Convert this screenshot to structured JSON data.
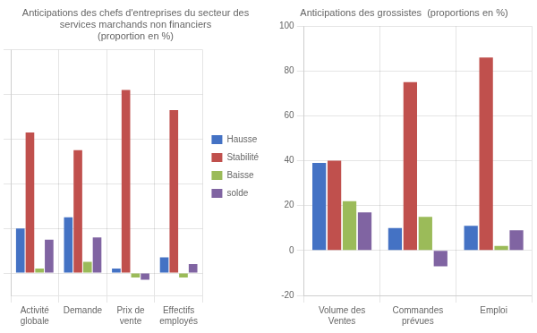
{
  "chart_data": [
    {
      "type": "bar",
      "title": "Anticipations des chefs d'entreprises du secteur des\nservices marchands non financiers\n(proportion en %)",
      "categories": [
        "Activité\nglobale",
        "Demande",
        "Prix de\nvente",
        "Effectifs\nemployés"
      ],
      "series": [
        {
          "name": "Hausse",
          "color": "#4472C4",
          "values": [
            20,
            25,
            2,
            7
          ]
        },
        {
          "name": "Stabilité",
          "color": "#C0504D",
          "values": [
            63,
            55,
            82,
            73
          ]
        },
        {
          "name": "Baisse",
          "color": "#9BBB59",
          "values": [
            2,
            5,
            -2,
            -2
          ]
        },
        {
          "name": "solde",
          "color": "#8064A2",
          "values": [
            15,
            16,
            -3,
            4
          ]
        }
      ],
      "ylim": [
        -10,
        100
      ],
      "yticks": [
        0,
        20,
        40,
        60,
        80,
        100
      ],
      "grid": true,
      "tick_labels": "x",
      "legend": "right"
    },
    {
      "type": "bar",
      "title": "Anticipations des grossistes  (proportions en %)",
      "categories": [
        "Volume des\nVentes",
        "Commandes\nprévues",
        "Emploi"
      ],
      "series": [
        {
          "name": "Hausse",
          "color": "#4472C4",
          "values": [
            39,
            10,
            11
          ]
        },
        {
          "name": "Stabilité",
          "color": "#C0504D",
          "values": [
            40,
            75,
            86
          ]
        },
        {
          "name": "Baisse",
          "color": "#9BBB59",
          "values": [
            22,
            15,
            2
          ]
        },
        {
          "name": "solde",
          "color": "#8064A2",
          "values": [
            17,
            -7,
            9
          ]
        }
      ],
      "ylim": [
        -20,
        100
      ],
      "yticks": [
        -20,
        0,
        20,
        40,
        60,
        80,
        100
      ],
      "grid": true
    }
  ]
}
